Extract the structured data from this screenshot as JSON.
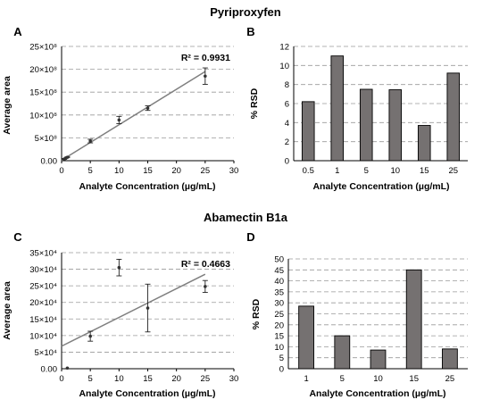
{
  "figure": {
    "section_titles": [
      "Pyriproxyfen",
      "Abamectin B1a"
    ]
  },
  "chart_data": [
    {
      "panel": "A",
      "type": "scatter",
      "section": "Pyriproxyfen",
      "xlabel": "Analyte Concentration (µg/mL)",
      "ylabel": "Average area",
      "xlim": [
        0,
        30
      ],
      "ylim": [
        0,
        25
      ],
      "x_ticks": [
        "0",
        "5",
        "10",
        "15",
        "20",
        "25",
        "30"
      ],
      "y_ticks": [
        "0.00",
        "5×10⁸",
        "10×10⁸",
        "15×10⁸",
        "20×10⁸",
        "25×10⁸"
      ],
      "y_unit": "10⁸",
      "points": [
        {
          "x": 0.5,
          "y": 0.4,
          "err": 0.1
        },
        {
          "x": 1,
          "y": 0.75,
          "err": 0.1
        },
        {
          "x": 5,
          "y": 4.3,
          "err": 0.4
        },
        {
          "x": 10,
          "y": 8.9,
          "err": 0.8
        },
        {
          "x": 15,
          "y": 11.5,
          "err": 0.5
        },
        {
          "x": 25,
          "y": 18.5,
          "err": 1.8
        }
      ],
      "trendline": {
        "x": [
          0,
          25
        ],
        "y": [
          0.1,
          19.5
        ]
      },
      "annotation": "R² = 0.9931",
      "grid": "horizontal dashed",
      "colors": {
        "marker": "#333333",
        "trendline": "#7f7f7f"
      }
    },
    {
      "panel": "B",
      "type": "bar",
      "section": "Pyriproxyfen",
      "xlabel": "Analyte Concentration (µg/mL)",
      "ylabel": "% RSD",
      "categories": [
        "0.5",
        "1",
        "5",
        "10",
        "15",
        "25"
      ],
      "values": [
        6.2,
        11.0,
        7.5,
        7.45,
        3.7,
        9.2
      ],
      "ylim": [
        0,
        12
      ],
      "y_ticks": [
        "0",
        "2",
        "4",
        "6",
        "8",
        "10",
        "12"
      ],
      "grid": "horizontal dashed",
      "colors": {
        "bar": "#757171",
        "outline": "#000000"
      }
    },
    {
      "panel": "C",
      "type": "scatter",
      "section": "Abamectin B1a",
      "xlabel": "Analyte Concentration (µg/mL)",
      "ylabel": "Average area",
      "xlim": [
        0,
        30
      ],
      "ylim": [
        0,
        35
      ],
      "x_ticks": [
        "0",
        "5",
        "10",
        "15",
        "20",
        "25",
        "30"
      ],
      "y_ticks": [
        "0.00",
        "5×10⁴",
        "10×10⁴",
        "15×10⁴",
        "20×10⁴",
        "25×10⁴",
        "30×10⁴",
        "35×10⁴"
      ],
      "y_unit": "10⁴",
      "points": [
        {
          "x": 1,
          "y": 0.2,
          "err": 0
        },
        {
          "x": 5,
          "y": 9.8,
          "err": 1.5
        },
        {
          "x": 10,
          "y": 30.5,
          "err": 2.5
        },
        {
          "x": 15,
          "y": 18.3,
          "err": 7.2
        },
        {
          "x": 25,
          "y": 24.8,
          "err": 1.8
        }
      ],
      "trendline": {
        "x": [
          0,
          25
        ],
        "y": [
          6.8,
          28.5
        ]
      },
      "annotation": "R² = 0.4663",
      "grid": "horizontal dashed",
      "colors": {
        "marker": "#333333",
        "trendline": "#7f7f7f"
      }
    },
    {
      "panel": "D",
      "type": "bar",
      "section": "Abamectin B1a",
      "xlabel": "Analyte Concentration (µg/mL)",
      "ylabel": "% RSD",
      "categories": [
        "1",
        "5",
        "10",
        "15",
        "25"
      ],
      "values": [
        28.5,
        15.0,
        8.5,
        45.0,
        9.0
      ],
      "ylim": [
        0,
        50
      ],
      "y_ticks": [
        "0",
        "5",
        "10",
        "15",
        "20",
        "25",
        "30",
        "35",
        "40",
        "45",
        "50"
      ],
      "grid": "horizontal dashed",
      "colors": {
        "bar": "#757171",
        "outline": "#000000"
      }
    }
  ]
}
